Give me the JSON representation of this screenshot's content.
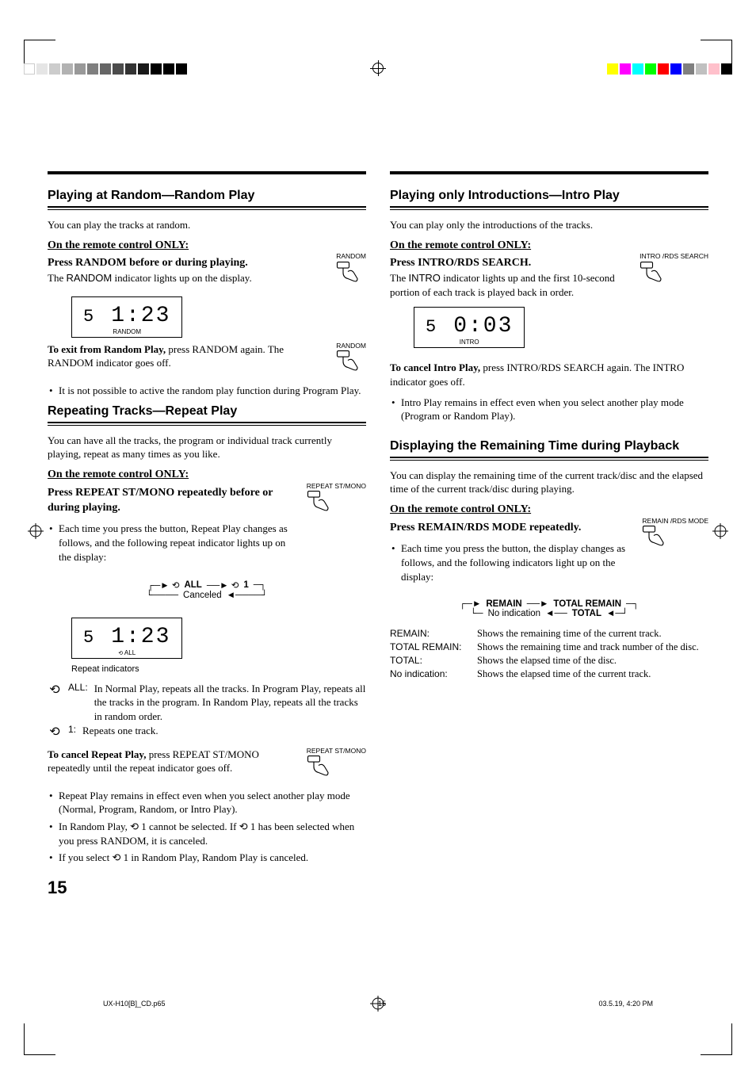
{
  "regmarks": {
    "left_grays": [
      "#ffffff",
      "#e5e5e5",
      "#cccccc",
      "#b2b2b2",
      "#999999",
      "#7f7f7f",
      "#666666",
      "#4c4c4c",
      "#333333",
      "#191919",
      "#000000",
      "#000000",
      "#000000"
    ],
    "right_colors": [
      "#ffff00",
      "#ff00ff",
      "#00ffff",
      "#00ff00",
      "#ff0000",
      "#0000ff",
      "#808080",
      "#c0c0c0",
      "#ffc0cb",
      "#000000"
    ]
  },
  "left": {
    "sec1": {
      "heading": "Playing at Random—Random Play",
      "intro": "You can play the tracks at random.",
      "remote": "On the remote control ONLY:",
      "instr1": "Press RANDOM before or during playing.",
      "instr1_after": "The RANDOM indicator lights up on the display.",
      "btn_label": "RANDOM",
      "lcd": {
        "track": "5",
        "time": "1:23",
        "indicator": "RANDOM"
      },
      "exit_bold": "To exit from Random Play,",
      "exit_rest": " press RANDOM again. The RANDOM indicator goes off.",
      "note1": "It is not possible to active the random play function during Program Play."
    },
    "sec2": {
      "heading": "Repeating Tracks—Repeat Play",
      "intro": "You can have all the tracks, the program or individual track currently playing, repeat as many times as you like.",
      "remote": "On the remote control ONLY:",
      "instr1": "Press REPEAT ST/MONO repeatedly before or during playing.",
      "btn_label": "REPEAT ST/MONO",
      "bullet1": "Each time you press the button, Repeat Play changes as follows, and the following repeat indicator lights up on the display:",
      "flow": {
        "a": "ALL",
        "b": "1",
        "c": "Canceled"
      },
      "lcd": {
        "track": "5",
        "time": "1:23",
        "indicator": "ALL",
        "caption": "Repeat indicators"
      },
      "mode_all_label": "ALL:",
      "mode_all_desc": "In Normal Play, repeats all the tracks. In Program Play, repeats all the tracks in the program. In Random Play, repeats all the tracks in random order.",
      "mode_1_label": "1:",
      "mode_1_desc": "Repeats one track.",
      "cancel_bold": "To cancel Repeat Play,",
      "cancel_rest": " press REPEAT ST/MONO repeatedly until the repeat indicator goes off.",
      "notes": [
        "Repeat Play remains in effect even when you select another play mode (Normal, Program, Random, or Intro Play).",
        "In Random Play, ⟲ 1 cannot be selected. If ⟲ 1 has been selected when you press RANDOM, it is canceled.",
        "If you select ⟲ 1 in Random Play, Random Play is canceled."
      ]
    }
  },
  "right": {
    "sec1": {
      "heading": "Playing only Introductions—Intro Play",
      "intro": "You can play only the introductions of the tracks.",
      "remote": "On the remote control ONLY:",
      "instr1": "Press INTRO/RDS SEARCH.",
      "instr1_after": "The INTRO indicator lights up and the first 10-second portion of each track is played back in order.",
      "btn_label": "INTRO /RDS SEARCH",
      "lcd": {
        "track": "5",
        "time": "0:03",
        "indicator": "INTRO"
      },
      "cancel_bold": "To cancel Intro Play,",
      "cancel_rest": " press INTRO/RDS SEARCH again. The INTRO indicator goes off.",
      "note1": "Intro Play remains in effect even when you select another play mode (Program or Random Play)."
    },
    "sec2": {
      "heading": "Displaying the Remaining Time during Playback",
      "intro": "You can display the remaining time of the current track/disc and the elapsed time of the current track/disc during playing.",
      "remote": "On the remote control ONLY:",
      "instr1": "Press REMAIN/RDS MODE repeatedly.",
      "btn_label": "REMAIN /RDS MODE",
      "bullet1": "Each time you press the button, the display changes as follows, and the following indicators light up on the display:",
      "flow": {
        "a": "REMAIN",
        "b": "TOTAL REMAIN",
        "c": "TOTAL",
        "d": "No indication"
      },
      "defs": [
        {
          "t": "REMAIN:",
          "d": "Shows the remaining time of the current track."
        },
        {
          "t": "TOTAL REMAIN:",
          "d": "Shows the remaining time and track number of the disc."
        },
        {
          "t": "TOTAL:",
          "d": "Shows the elapsed time of the disc."
        },
        {
          "t": "No indication:",
          "d": "Shows the elapsed time of the current track."
        }
      ]
    }
  },
  "page_number": "15",
  "footer": {
    "file": "UX-H10[B]_CD.p65",
    "page": "15",
    "date": "03.5.19, 4:20 PM"
  }
}
